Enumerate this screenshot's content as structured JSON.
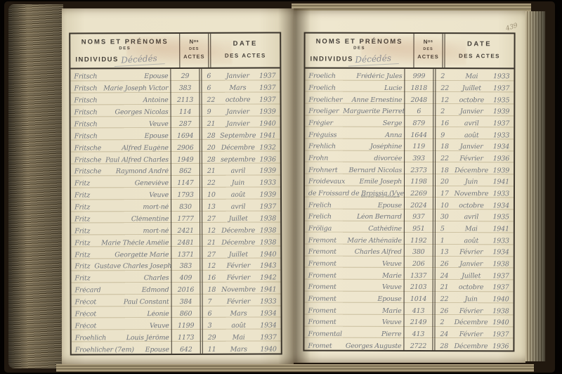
{
  "page_corner_number": "439",
  "left_page": {
    "header": {
      "title_line1": "NOMS ET PRÉNOMS",
      "title_line2": "DES",
      "title_line3": "INDIVIDUS",
      "annotation": "Décédés",
      "acte_line1": "Nᵒˢ",
      "acte_line2": "DES",
      "acte_line3": "ACTES",
      "date_line1": "DATE",
      "date_line2": "DES ACTES"
    },
    "rows": [
      {
        "surname": "Fritsch",
        "given": "Épouse",
        "acte": "29",
        "day": "6",
        "month": "Janvier",
        "year": "1937"
      },
      {
        "surname": "Fritsch",
        "given": "Marie Joseph Victor",
        "acte": "383",
        "day": "6",
        "month": "Mars",
        "year": "1937"
      },
      {
        "surname": "Fritsch",
        "given": "Antoine",
        "acte": "2113",
        "day": "22",
        "month": "octobre",
        "year": "1937"
      },
      {
        "surname": "Fritsch",
        "given": "Georges Nicolas",
        "acte": "114",
        "day": "9",
        "month": "Janvier",
        "year": "1939"
      },
      {
        "surname": "Fritsch",
        "given": "Veuve",
        "acte": "287",
        "day": "21",
        "month": "Janvier",
        "year": "1940"
      },
      {
        "surname": "Fritsch",
        "given": "Épouse",
        "acte": "1694",
        "day": "28",
        "month": "Septembre",
        "year": "1941"
      },
      {
        "surname": "Fritsche",
        "given": "Alfred Eugène",
        "acte": "2906",
        "day": "20",
        "month": "Décembre",
        "year": "1932"
      },
      {
        "surname": "Fritsche",
        "given": "Paul Alfred Charles",
        "acte": "1949",
        "day": "28",
        "month": "septembre",
        "year": "1936"
      },
      {
        "surname": "Fritsche",
        "given": "Raymond André",
        "acte": "862",
        "day": "21",
        "month": "avril",
        "year": "1939"
      },
      {
        "surname": "Fritz",
        "given": "Geneviève",
        "acte": "1147",
        "day": "22",
        "month": "Juin",
        "year": "1933"
      },
      {
        "surname": "Fritz",
        "given": "Veuve",
        "acte": "1793",
        "day": "10",
        "month": "août",
        "year": "1939"
      },
      {
        "surname": "Fritz",
        "given": "mort-né",
        "acte": "830",
        "day": "13",
        "month": "avril",
        "year": "1937"
      },
      {
        "surname": "Fritz",
        "given": "Clémentine",
        "acte": "1777",
        "day": "27",
        "month": "Juillet",
        "year": "1938"
      },
      {
        "surname": "Fritz",
        "given": "mort-né",
        "acte": "2421",
        "day": "12",
        "month": "Décembre",
        "year": "1938"
      },
      {
        "surname": "Fritz",
        "given": "Marie Thécle Amélie",
        "acte": "2481",
        "day": "21",
        "month": "Décembre",
        "year": "1938"
      },
      {
        "surname": "Fritz",
        "given": "Georgette Marie",
        "acte": "1371",
        "day": "27",
        "month": "Juillet",
        "year": "1940"
      },
      {
        "surname": "Fritz",
        "given": "Gustave Charles Joseph",
        "acte": "383",
        "day": "12",
        "month": "Février",
        "year": "1943"
      },
      {
        "surname": "Fritz",
        "given": "Charles",
        "acte": "409",
        "day": "16",
        "month": "Février",
        "year": "1942"
      },
      {
        "surname": "Frécard",
        "given": "Edmond",
        "acte": "2016",
        "day": "18",
        "month": "Novembre",
        "year": "1941"
      },
      {
        "surname": "Frécot",
        "given": "Paul Constant",
        "acte": "384",
        "day": "7",
        "month": "Février",
        "year": "1933"
      },
      {
        "surname": "Frécot",
        "given": "Léonie",
        "acte": "860",
        "day": "6",
        "month": "Mars",
        "year": "1934"
      },
      {
        "surname": "Frécot",
        "given": "Veuve",
        "acte": "1199",
        "day": "3",
        "month": "août",
        "year": "1934"
      },
      {
        "surname": "Froehlich",
        "given": "Louis Jérôme",
        "acte": "1173",
        "day": "29",
        "month": "Mai",
        "year": "1937"
      },
      {
        "surname": "Froehlicher (7em)",
        "given": "Épouse",
        "acte": "642",
        "day": "11",
        "month": "Mars",
        "year": "1940"
      }
    ]
  },
  "right_page": {
    "header": {
      "title_line1": "NOMS ET PRÉNOMS",
      "title_line2": "DES",
      "title_line3": "INDIVIDUS",
      "annotation": "Décédés",
      "acte_line1": "Nᵒˢ",
      "acte_line2": "DES",
      "acte_line3": "ACTES",
      "date_line1": "DATE",
      "date_line2": "DES ACTES"
    },
    "rows": [
      {
        "surname": "Froelich",
        "given": "Frédéric Jules",
        "acte": "999",
        "day": "2",
        "month": "Mai",
        "year": "1933"
      },
      {
        "surname": "Froelich",
        "given": "Lucie",
        "acte": "1818",
        "day": "22",
        "month": "Juillet",
        "year": "1937"
      },
      {
        "surname": "Froelicher",
        "given": "Anne Ernestine",
        "acte": "2048",
        "day": "12",
        "month": "octobre",
        "year": "1935"
      },
      {
        "surname": "Froeliger",
        "given": "Marguerite Pierrette",
        "acte": "6",
        "day": "2",
        "month": "Janvier",
        "year": "1939"
      },
      {
        "surname": "Frégier",
        "given": "Serge",
        "acte": "879",
        "day": "16",
        "month": "avril",
        "year": "1937"
      },
      {
        "surname": "Fréguiss",
        "given": "Anna",
        "acte": "1644",
        "day": "9",
        "month": "août",
        "year": "1933"
      },
      {
        "surname": "Frehlich",
        "given": "Joséphine",
        "acte": "119",
        "day": "18",
        "month": "Janvier",
        "year": "1934"
      },
      {
        "surname": "Frohn",
        "given": "divorcée",
        "acte": "393",
        "day": "22",
        "month": "Février",
        "year": "1936"
      },
      {
        "surname": "Frohnert",
        "given": "Bernard Nicolas",
        "acte": "2373",
        "day": "18",
        "month": "Décembre",
        "year": "1939"
      },
      {
        "surname": "Froidevaux",
        "given": "Émile Joseph",
        "acte": "1198",
        "day": "20",
        "month": "Juin",
        "year": "1941"
      },
      {
        "surname": "de Froissard de Broissia (Vve)",
        "given": "Marie",
        "note": "Michel Paul Hubert",
        "acte": "2269",
        "day": "17",
        "month": "Novembre",
        "year": "1933"
      },
      {
        "surname": "Frelich",
        "given": "Épouse",
        "acte": "2024",
        "day": "10",
        "month": "octobre",
        "year": "1934"
      },
      {
        "surname": "Frelich",
        "given": "Léon Bernard",
        "acte": "937",
        "day": "30",
        "month": "avril",
        "year": "1935"
      },
      {
        "surname": "Fröliga",
        "given": "Cathédine",
        "acte": "951",
        "day": "5",
        "month": "Mai",
        "year": "1941"
      },
      {
        "surname": "Fremont",
        "given": "Marie Athénaïde",
        "acte": "1192",
        "day": "1",
        "month": "août",
        "year": "1933"
      },
      {
        "surname": "Fremont",
        "given": "Charles Alfred",
        "acte": "380",
        "day": "13",
        "month": "Février",
        "year": "1934"
      },
      {
        "surname": "Fremont",
        "given": "Veuve",
        "acte": "206",
        "day": "26",
        "month": "Janvier",
        "year": "1938"
      },
      {
        "surname": "Froment",
        "given": "Marie",
        "acte": "1337",
        "day": "24",
        "month": "Juillet",
        "year": "1937"
      },
      {
        "surname": "Froment",
        "given": "Veuve",
        "acte": "2103",
        "day": "21",
        "month": "octobre",
        "year": "1937"
      },
      {
        "surname": "Froment",
        "given": "Épouse",
        "acte": "1014",
        "day": "22",
        "month": "Juin",
        "year": "1940"
      },
      {
        "surname": "Froment",
        "given": "Marie",
        "acte": "413",
        "day": "26",
        "month": "Février",
        "year": "1938"
      },
      {
        "surname": "Froment",
        "given": "Veuve",
        "acte": "2149",
        "day": "2",
        "month": "Décembre",
        "year": "1940"
      },
      {
        "surname": "Fromental",
        "given": "Pierre",
        "acte": "413",
        "day": "24",
        "month": "Février",
        "year": "1937"
      },
      {
        "surname": "Fromet",
        "given": "Georges Auguste",
        "acte": "2722",
        "day": "28",
        "month": "Décembre",
        "year": "1936"
      }
    ]
  }
}
